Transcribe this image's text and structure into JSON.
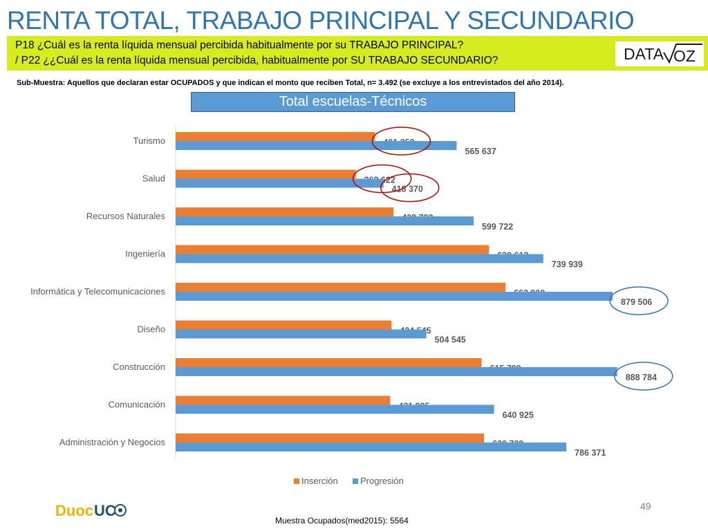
{
  "header": {
    "title": "RENTA TOTAL, TRABAJO PRINCIPAL Y SECUNDARIO",
    "question_1": "P18 ¿Cuál es la renta líquida mensual percibida habitualmente por su TRABAJO PRINCIPAL?",
    "question_2": "/ P22 ¿¿Cuál es la  renta líquida mensual percibida, habitualmente por  SU TRABAJO SECUNDARIO?",
    "logo_text": "DATA VOZ"
  },
  "subsample_note": "Sub-Muestra: Aquellos que declaran estar OCUPADOS y que indican el monto que reciben Total, n= 3.492 (se excluye a los entrevistados del año 2014).",
  "chart_title_box": "Total escuelas-Técnicos",
  "chart_data": {
    "type": "bar",
    "orientation": "horizontal",
    "title": "Total escuelas-Técnicos",
    "categories": [
      "Turismo",
      "Salud",
      "Recursos Naturales",
      "Ingeniería",
      "Informática y Telecomunicaciones",
      "Diseño",
      "Construcción",
      "Comunicación",
      "Administración y Negocios"
    ],
    "series": [
      {
        "name": "Inserción",
        "color": "#ed7d31",
        "values": [
          401250,
          362622,
          438722,
          630613,
          663900,
          434545,
          615799,
          431905,
          620728
        ],
        "labels": [
          "401 250",
          "362 622",
          "438 722",
          "630 613",
          "663 900",
          "434 545",
          "615 799",
          "431 905",
          "620 728"
        ]
      },
      {
        "name": "Progresión",
        "color": "#5b9bd5",
        "values": [
          565637,
          418370,
          599722,
          739939,
          879506,
          504545,
          888784,
          640925,
          786371
        ],
        "labels": [
          "565 637",
          "418 370",
          "599 722",
          "739 939",
          "879 506",
          "504 545",
          "888 784",
          "640 925",
          "786 371"
        ]
      }
    ],
    "xlim": [
      0,
      885000
    ],
    "legend_position": "bottom",
    "grid": false,
    "annotations": [
      {
        "type": "circle",
        "color": "#c00000",
        "series": "Inserción",
        "category": "Turismo"
      },
      {
        "type": "circle",
        "color": "#c00000",
        "series": "Inserción",
        "category": "Salud"
      },
      {
        "type": "circle",
        "color": "#c00000",
        "series": "Progresión",
        "category": "Salud"
      },
      {
        "type": "circle",
        "color": "#2e75b6",
        "series": "Progresión",
        "category": "Informática y Telecomunicaciones"
      },
      {
        "type": "circle",
        "color": "#2e75b6",
        "series": "Progresión",
        "category": "Construcción"
      }
    ]
  },
  "page_number": "49",
  "footnote": "Muestra Ocupados(med2015): 5564",
  "logos": {
    "duoc": "DuocUC",
    "datavoz": "DATA VOZ"
  }
}
